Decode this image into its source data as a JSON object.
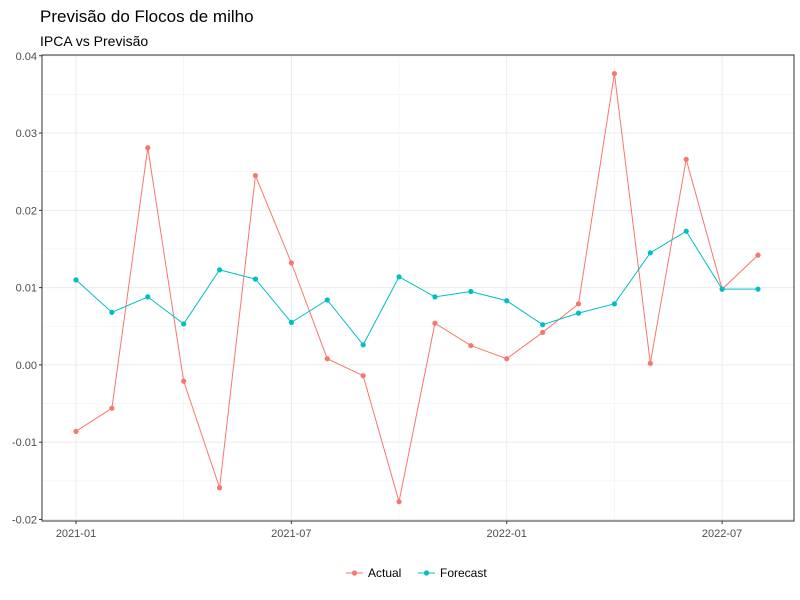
{
  "chart_data": {
    "type": "line",
    "title": "Previsão do Flocos de milho",
    "subtitle": "IPCA vs Previsão",
    "xlabel": "",
    "ylabel": "",
    "x": [
      "2021-01",
      "2021-02",
      "2021-03",
      "2021-04",
      "2021-05",
      "2021-06",
      "2021-07",
      "2021-08",
      "2021-09",
      "2021-10",
      "2021-11",
      "2021-12",
      "2022-01",
      "2022-02",
      "2022-03",
      "2022-04",
      "2022-05",
      "2022-06",
      "2022-07",
      "2022-08"
    ],
    "x_ticks": [
      "2021-01",
      "2021-07",
      "2022-01",
      "2022-07"
    ],
    "y_ticks": [
      "-0.02",
      "-0.01",
      "0.00",
      "0.01",
      "0.02",
      "0.03",
      "0.04"
    ],
    "ylim": [
      -0.0202,
      0.0401
    ],
    "grid": true,
    "legend_position": "bottom",
    "series": [
      {
        "name": "Actual",
        "color": "#F8766D",
        "values": [
          -0.0086,
          -0.0056,
          0.0281,
          -0.0021,
          -0.0159,
          0.0245,
          0.0132,
          0.0008,
          -0.0014,
          -0.0177,
          0.0054,
          0.0025,
          0.0008,
          0.0042,
          0.0079,
          0.0377,
          0.0002,
          0.0266,
          0.0098,
          0.0142
        ]
      },
      {
        "name": "Forecast",
        "color": "#00BFC4",
        "values": [
          0.011,
          0.0068,
          0.0088,
          0.0053,
          0.0123,
          0.0111,
          0.0055,
          0.0084,
          0.0026,
          0.0114,
          0.0088,
          0.0095,
          0.0083,
          0.0052,
          0.0067,
          0.0079,
          0.0145,
          0.0173,
          0.0098,
          0.0098
        ]
      }
    ]
  }
}
